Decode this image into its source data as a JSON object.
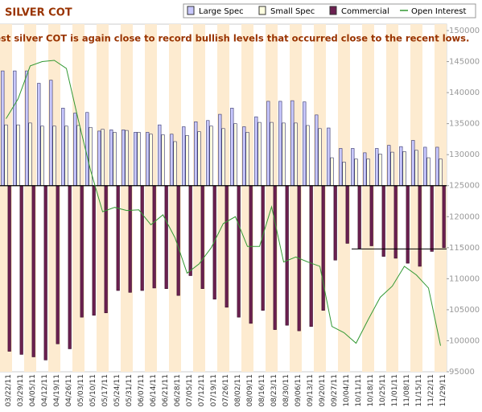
{
  "chart_data": {
    "type": "bar",
    "title": "SILVER COT",
    "annotation": "Latest silver COT is again close to record bullish levels that occurred close to the recent lows.",
    "categories": [
      "03/22/11",
      "03/29/11",
      "04/05/11",
      "04/12/11",
      "04/19/11",
      "04/26/11",
      "05/03/11",
      "05/10/11",
      "05/17/11",
      "05/24/11",
      "05/31/11",
      "06/07/11",
      "06/14/11",
      "06/21/11",
      "06/28/11",
      "07/05/11",
      "07/12/11",
      "07/19/11",
      "07/26/11",
      "08/02/11",
      "08/09/11",
      "08/16/11",
      "08/23/11",
      "08/30/11",
      "09/06/11",
      "09/13/11",
      "09/20/11",
      "09/27/11",
      "10/04/11",
      "10/11/11",
      "10/18/11",
      "10/25/11",
      "11/01/11",
      "11/08/11",
      "11/15/11",
      "11/22/11",
      "11/29/11"
    ],
    "baseline": 125000,
    "series": [
      {
        "name": "Large Spec",
        "type": "bar",
        "color": "#c8c8ff",
        "values": [
          143500,
          143500,
          143500,
          141500,
          142000,
          137500,
          136700,
          136800,
          133800,
          134000,
          134000,
          133600,
          133600,
          134800,
          133300,
          134500,
          135300,
          135500,
          136500,
          137500,
          134500,
          136100,
          138600,
          138600,
          138700,
          138500,
          136400,
          134300,
          131000,
          131000,
          130300,
          131000,
          131500,
          131300,
          132300,
          131200,
          131200
        ]
      },
      {
        "name": "Small Spec",
        "type": "bar",
        "color": "#ffffe0",
        "values": [
          134800,
          134800,
          135100,
          134600,
          134600,
          134600,
          134700,
          134400,
          134100,
          133600,
          133900,
          133600,
          133300,
          133200,
          132100,
          133100,
          133700,
          134600,
          134200,
          135000,
          133600,
          135200,
          135200,
          135100,
          135100,
          134700,
          134200,
          129500,
          128800,
          129300,
          129300,
          130100,
          130400,
          130500,
          130700,
          129500,
          129300
        ]
      },
      {
        "name": "Commercial",
        "type": "bar",
        "color": "#6b2050",
        "values": [
          98300,
          97800,
          97400,
          96900,
          99500,
          98700,
          103800,
          104100,
          104500,
          108100,
          107800,
          108100,
          108500,
          108400,
          107300,
          110500,
          108400,
          106700,
          105400,
          103800,
          102800,
          104900,
          101800,
          102500,
          101600,
          102300,
          104900,
          113000,
          115700,
          114900,
          115300,
          113600,
          113300,
          112500,
          112000,
          114400,
          115000
        ]
      },
      {
        "name": "Open Interest",
        "type": "line",
        "axis": "y2",
        "color": "#339933",
        "values": [
          135800,
          139000,
          144300,
          145000,
          145200,
          143900,
          135500,
          127500,
          120800,
          121500,
          121000,
          121100,
          118700,
          120300,
          116600,
          110900,
          112400,
          115000,
          118900,
          120000,
          115200,
          115200,
          121600,
          112700,
          113500,
          112700,
          112000,
          102300,
          101300,
          99600,
          103400,
          107000,
          108800,
          112000,
          110600,
          108500,
          99200
        ]
      }
    ],
    "reference_line": {
      "value": 114800,
      "x_start": "10/11/11"
    },
    "ylim": [
      95000,
      150000
    ],
    "y2lim": [
      95000,
      150000
    ],
    "y2ticks": [
      95000,
      100000,
      105000,
      110000,
      115000,
      120000,
      125000,
      130000,
      135000,
      140000,
      145000,
      150000
    ]
  }
}
